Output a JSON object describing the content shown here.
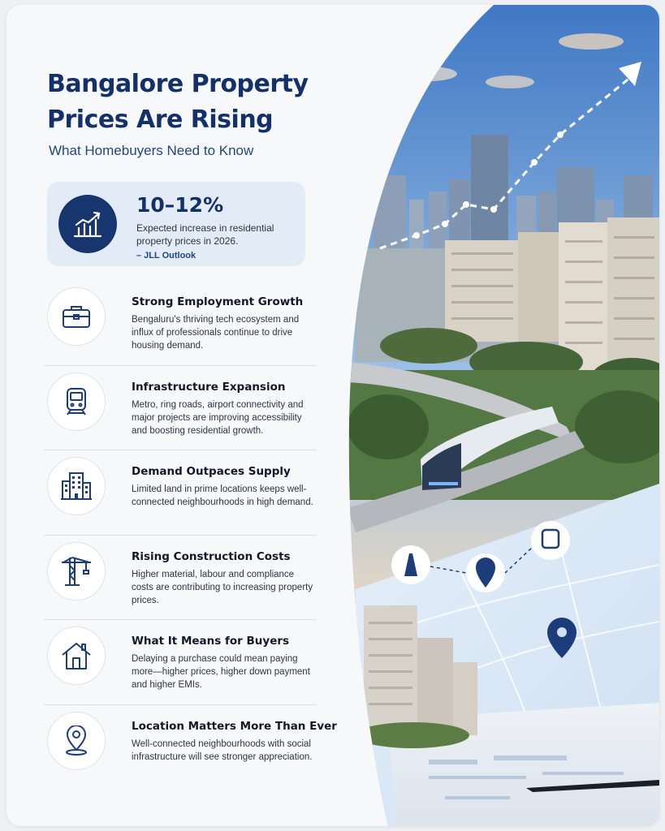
{
  "header": {
    "title": "Bangalore Property Prices Are Rising",
    "subtitle": "What Homebuyers Need to Know"
  },
  "stat": {
    "value": "10–12%",
    "description": "Expected increase in residential property prices in 2026.",
    "source": "– JLL Outlook",
    "icon": "trend-up-chart-icon"
  },
  "items": [
    {
      "icon": "briefcase-icon",
      "title": "Strong Employment Growth",
      "desc": "Bengaluru's thriving tech ecosystem and influx of professionals continue to drive housing demand."
    },
    {
      "icon": "metro-train-icon",
      "title": "Infrastructure Expansion",
      "desc": "Metro, ring roads, airport connectivity and major projects are improving accessibility and boosting residential growth."
    },
    {
      "icon": "buildings-icon",
      "title": "Demand Outpaces Supply",
      "desc": "Limited land in prime locations keeps well-connected neighbourhoods in high demand."
    },
    {
      "icon": "construction-crane-icon",
      "title": "Rising Construction Costs",
      "desc": "Higher material, labour and compliance costs are contributing to increasing property prices."
    },
    {
      "icon": "house-icon",
      "title": "What It Means for Buyers",
      "desc": "Delaying a purchase could mean paying more—higher prices, higher down payment and higher EMIs."
    },
    {
      "icon": "location-pin-icon",
      "title": "Location Matters More Than Ever",
      "desc": "Well-connected neighbourhoods with social infrastructure will see stronger appreciation."
    }
  ],
  "colors": {
    "primary": "#14306b",
    "accent": "#1f4585",
    "stat_background": "#e3ebf6"
  }
}
